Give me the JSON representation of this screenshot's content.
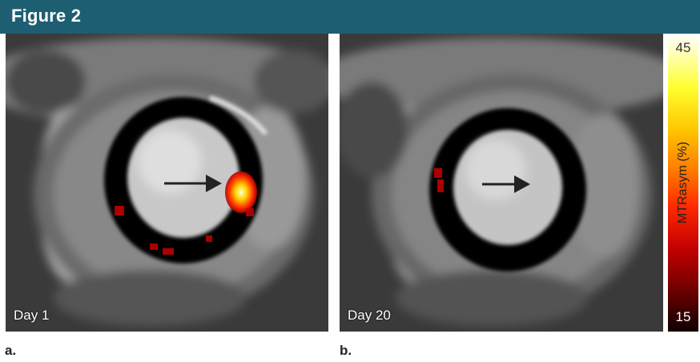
{
  "figure": {
    "title": "Figure 2"
  },
  "panels": [
    {
      "letter": "a.",
      "day_label": "Day 1"
    },
    {
      "letter": "b.",
      "day_label": "Day 20"
    }
  ],
  "colorbar": {
    "title": "MTRasym (%)",
    "max_label": "45",
    "min_label": "15"
  },
  "colors": {
    "header": "#1e5e73",
    "arrow": "#222222"
  }
}
